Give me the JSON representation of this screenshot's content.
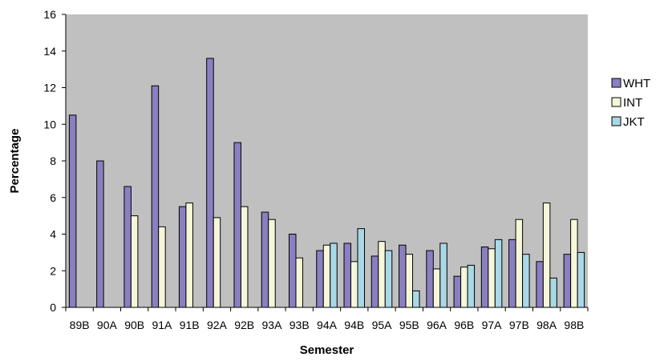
{
  "chart_data": {
    "type": "bar",
    "title": "",
    "xlabel": "Semester",
    "ylabel": "Percentage",
    "ylim": [
      0,
      16
    ],
    "yticks": [
      0,
      2,
      4,
      6,
      8,
      10,
      12,
      14,
      16
    ],
    "grid": false,
    "plot_background": "#c0c0c0",
    "legend_position": "right",
    "categories": [
      "89B",
      "90A",
      "90B",
      "91A",
      "91B",
      "92A",
      "92B",
      "93A",
      "93B",
      "94A",
      "94B",
      "95A",
      "95B",
      "96A",
      "96B",
      "97A",
      "97B",
      "98A",
      "98B"
    ],
    "series": [
      {
        "name": "WHT",
        "color": "#8a7fc0",
        "values": [
          10.5,
          8.0,
          6.6,
          12.1,
          5.5,
          13.6,
          9.0,
          5.2,
          4.0,
          3.1,
          3.5,
          2.8,
          3.4,
          3.1,
          1.7,
          3.3,
          3.7,
          2.5,
          2.9
        ]
      },
      {
        "name": "INT",
        "color": "#f6f7d9",
        "values": [
          null,
          null,
          5.0,
          4.4,
          5.7,
          4.9,
          5.5,
          4.8,
          2.7,
          3.4,
          2.5,
          3.6,
          2.9,
          2.1,
          2.2,
          3.2,
          4.8,
          5.7,
          4.8
        ]
      },
      {
        "name": "JKT",
        "color": "#a9d8e6",
        "values": [
          null,
          null,
          null,
          null,
          null,
          null,
          null,
          null,
          null,
          3.5,
          4.3,
          3.1,
          0.9,
          3.5,
          2.3,
          3.7,
          2.9,
          1.6,
          3.0
        ]
      }
    ]
  }
}
